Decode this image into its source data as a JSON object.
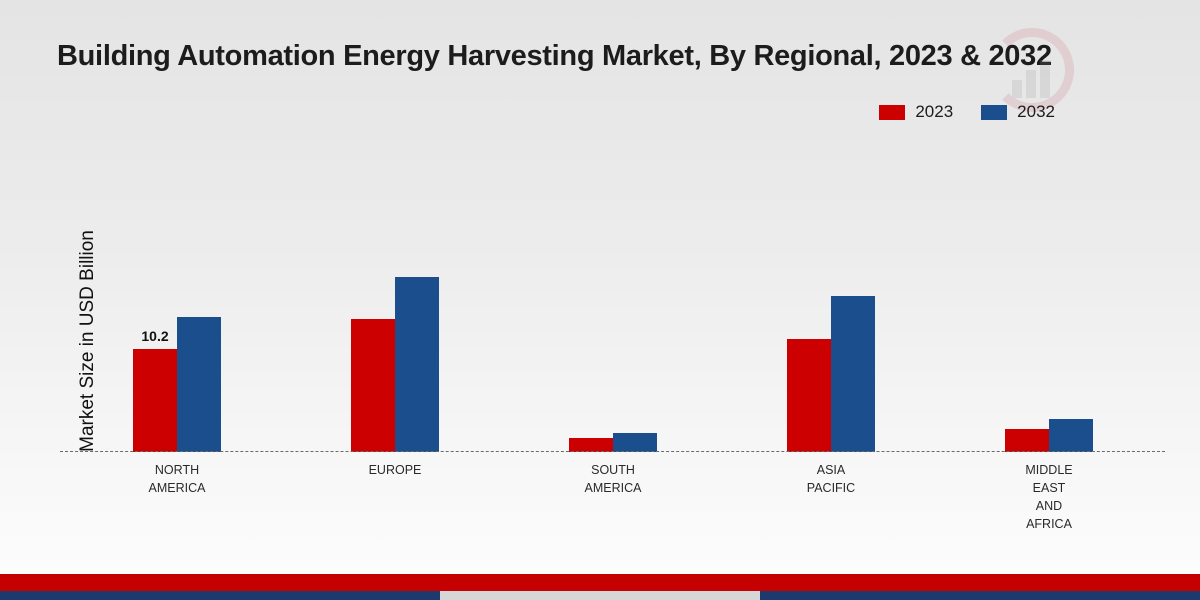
{
  "title": "Building Automation Energy Harvesting Market, By Regional, 2023 & 2032",
  "y_axis_label": "Market Size in USD Billion",
  "legend": {
    "items": [
      {
        "label": "2023",
        "color": "#cc0001"
      },
      {
        "label": "2032",
        "color": "#1a4e8c"
      }
    ]
  },
  "colors": {
    "series_2023": "#cc0001",
    "series_2032": "#1a4e8c",
    "footer_red": "#c40001",
    "footer_navy": "#1c3a6e",
    "footer_gray": "#d6d6d6"
  },
  "chart_data": {
    "type": "bar",
    "title": "Building Automation Energy Harvesting Market, By Regional, 2023 & 2032",
    "xlabel": "",
    "ylabel": "Market Size in USD Billion",
    "categories": [
      "NORTH AMERICA",
      "EUROPE",
      "SOUTH AMERICA",
      "ASIA PACIFIC",
      "MIDDLE EAST AND AFRICA"
    ],
    "category_lines": [
      [
        "NORTH",
        "AMERICA"
      ],
      [
        "EUROPE"
      ],
      [
        "SOUTH",
        "AMERICA"
      ],
      [
        "ASIA",
        "PACIFIC"
      ],
      [
        "MIDDLE",
        "EAST",
        "AND",
        "AFRICA"
      ]
    ],
    "series": [
      {
        "name": "2023",
        "color": "#cc0001",
        "values": [
          10.2,
          13.2,
          1.4,
          11.2,
          2.3
        ]
      },
      {
        "name": "2032",
        "color": "#1a4e8c",
        "values": [
          13.4,
          17.4,
          1.9,
          15.5,
          3.3
        ]
      }
    ],
    "ylim": [
      0,
      30
    ],
    "grid": false,
    "legend_position": "top-right",
    "annotations": [
      {
        "series": 0,
        "category": 0,
        "text": "10.2"
      }
    ]
  }
}
